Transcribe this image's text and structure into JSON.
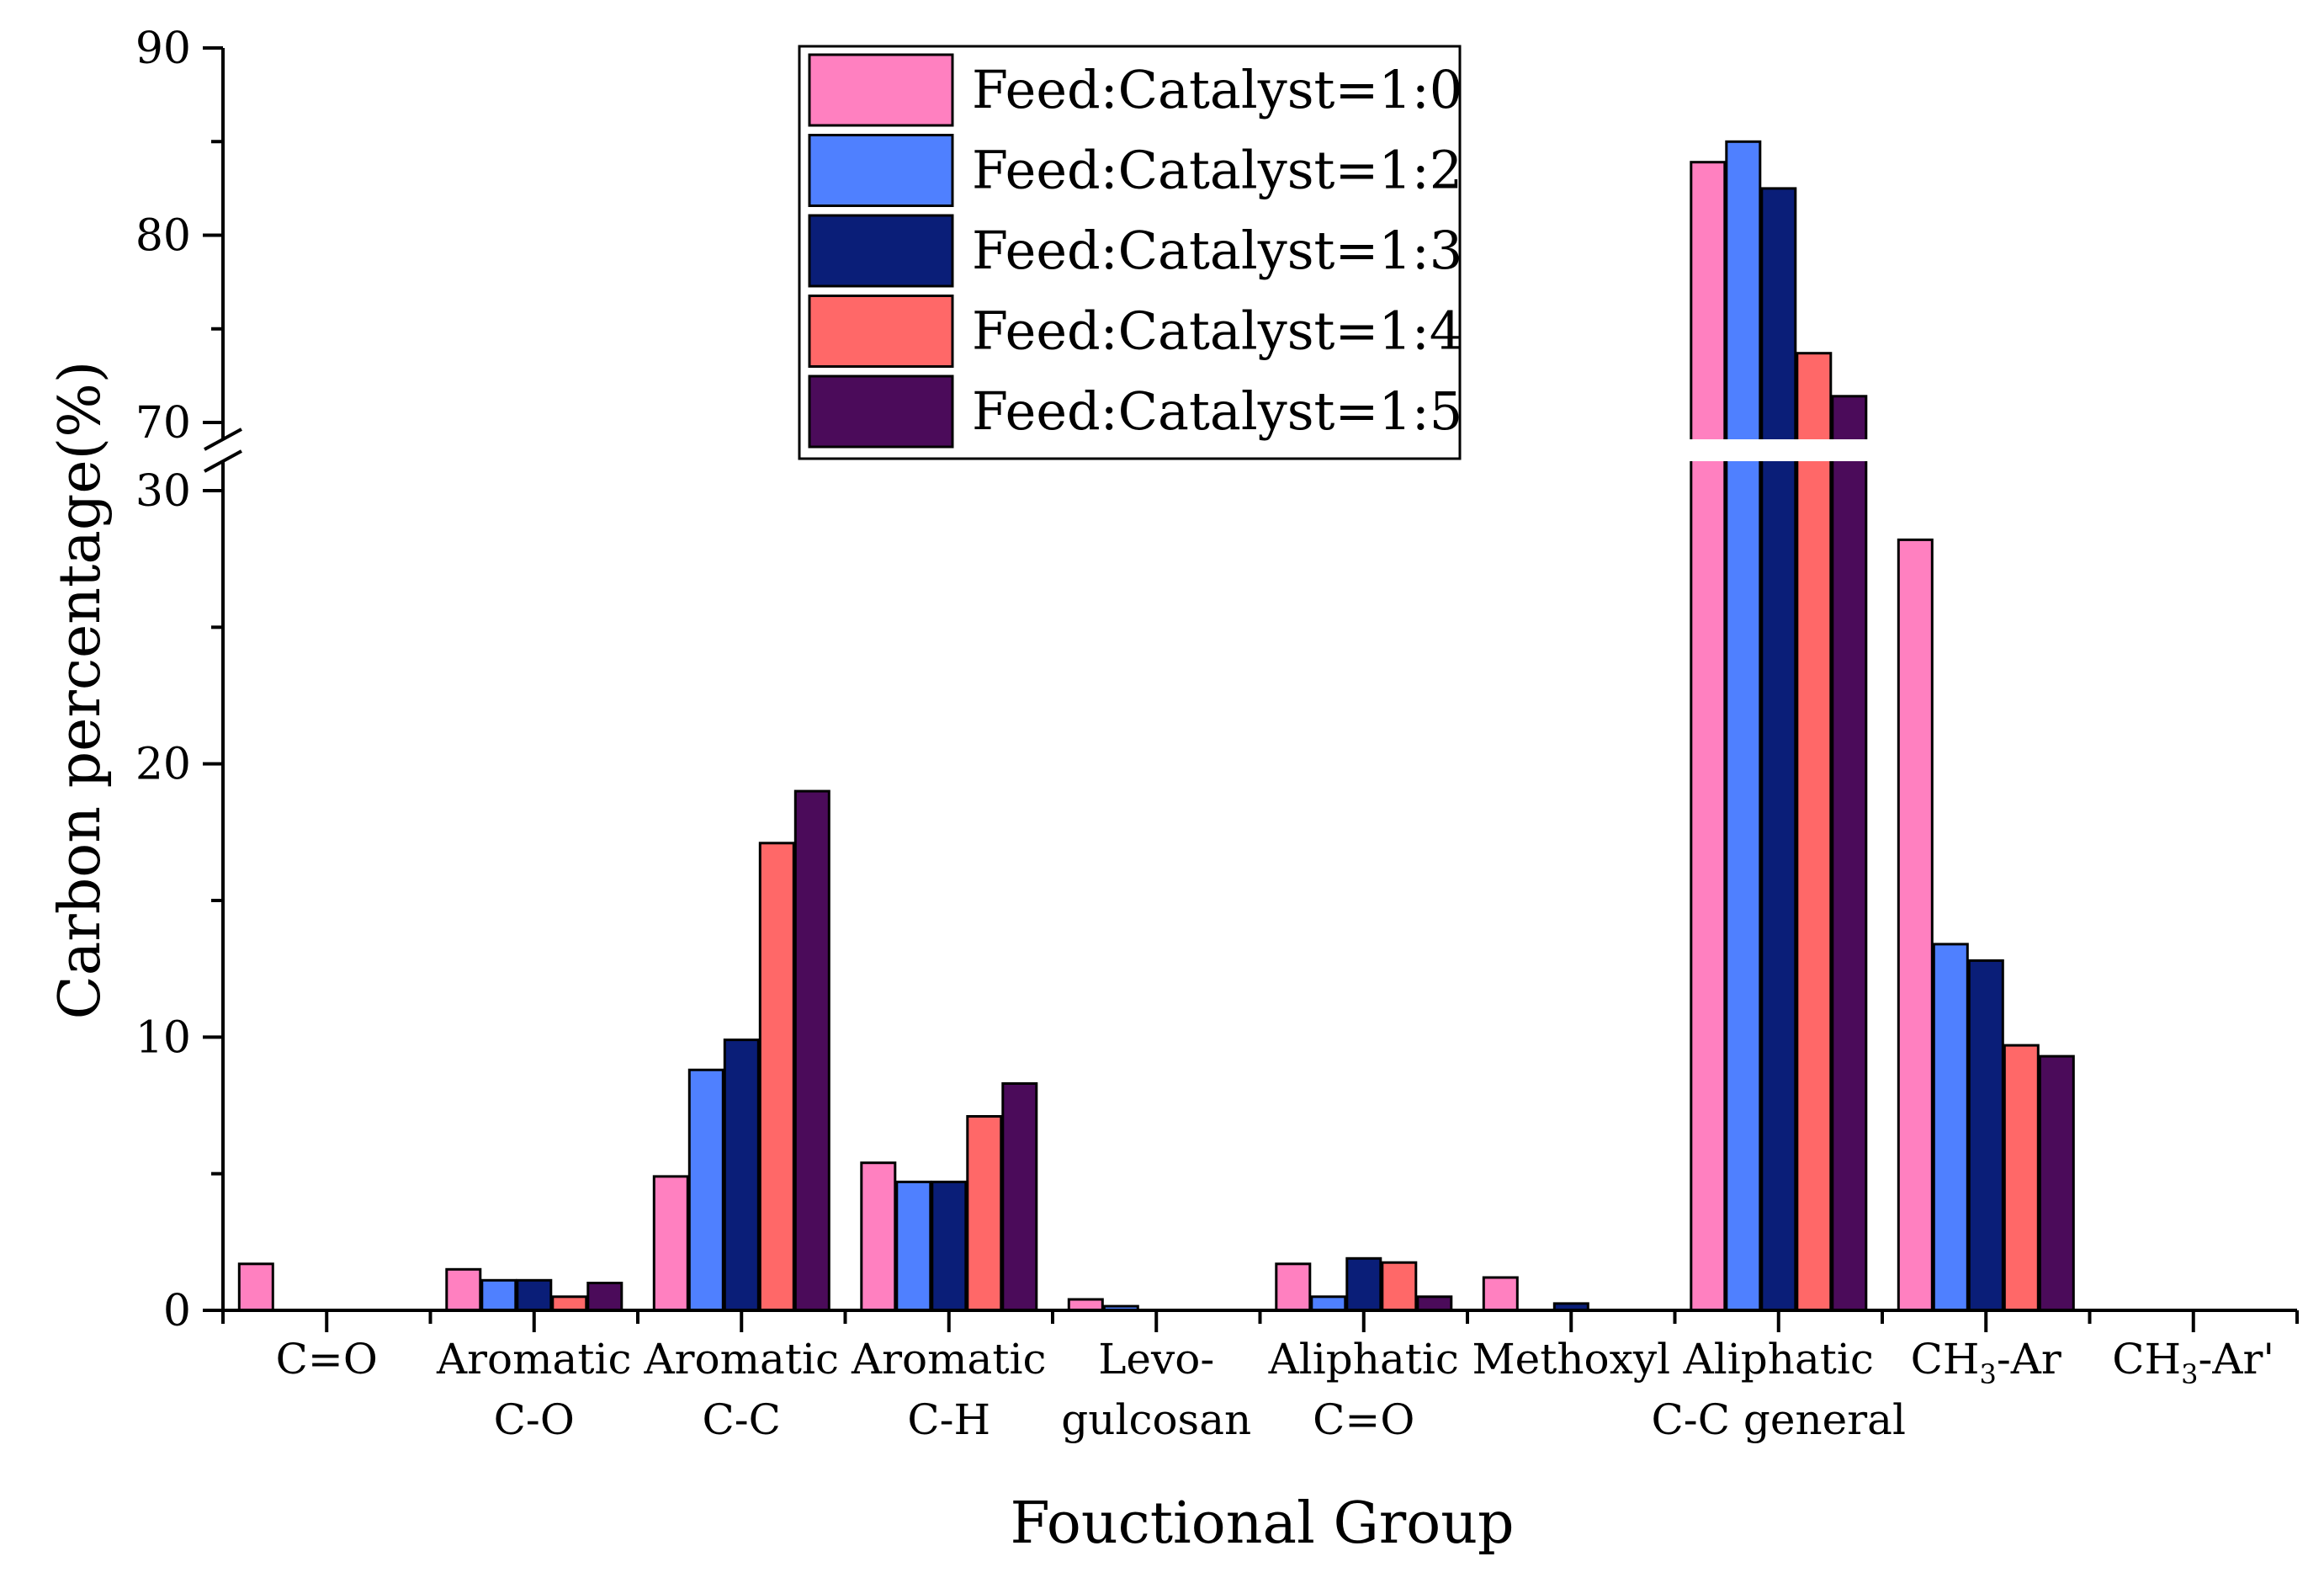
{
  "chart_data": {
    "type": "bar",
    "title": "",
    "xlabel": "Fouctional Group",
    "ylabel": "Carbon percentage(%)",
    "categories": [
      "C=O",
      "Aromatic C-O",
      "Aromatic C-C",
      "Aromatic C-H",
      "Levo-gulcosan",
      "Aliphatic C=O",
      "Methoxyl",
      "Aliphatic C-C general",
      "CH3-Ar",
      "CH3-Ar'"
    ],
    "category_lines": [
      [
        "C=O"
      ],
      [
        "Aromatic",
        "C-O"
      ],
      [
        "Aromatic",
        "C-C"
      ],
      [
        "Aromatic",
        "C-H"
      ],
      [
        "Levo-",
        "gulcosan"
      ],
      [
        "Aliphatic",
        "C=O"
      ],
      [
        "Methoxyl"
      ],
      [
        "Aliphatic",
        "C-C general"
      ],
      [
        "CH3-Ar"
      ],
      [
        "CH3-Ar'"
      ]
    ],
    "series": [
      {
        "name": "Feed:Catalyst=1:0",
        "color": "#ff80c0",
        "values": [
          1.7,
          1.5,
          4.9,
          5.4,
          0.4,
          1.7,
          1.2,
          83.9,
          28.2,
          0
        ]
      },
      {
        "name": "Feed:Catalyst=1:2",
        "color": "#4f80ff",
        "values": [
          0,
          1.1,
          8.8,
          4.7,
          0.15,
          0.5,
          0,
          85.0,
          13.4,
          0
        ]
      },
      {
        "name": "Feed:Catalyst=1:3",
        "color": "#0a1e78",
        "values": [
          0,
          1.1,
          9.9,
          4.7,
          0,
          1.9,
          0.25,
          82.5,
          12.8,
          0
        ]
      },
      {
        "name": "Feed:Catalyst=1:4",
        "color": "#ff6868",
        "values": [
          0,
          0.5,
          17.1,
          7.1,
          0,
          1.75,
          0,
          73.7,
          9.7,
          0
        ]
      },
      {
        "name": "Feed:Catalyst=1:5",
        "color": "#4b0b5a",
        "values": [
          0,
          1.0,
          19.0,
          8.3,
          0,
          0.5,
          0,
          71.4,
          9.3,
          0
        ]
      }
    ],
    "y_axis_break": {
      "lower_range": [
        0,
        30
      ],
      "upper_range": [
        70,
        90
      ]
    },
    "y_ticks_major": [
      0,
      10,
      20,
      30,
      70,
      80,
      90
    ],
    "y_ticks_minor": [
      5,
      15,
      25,
      75,
      85
    ],
    "legend_position": "top-center",
    "grid": false
  }
}
